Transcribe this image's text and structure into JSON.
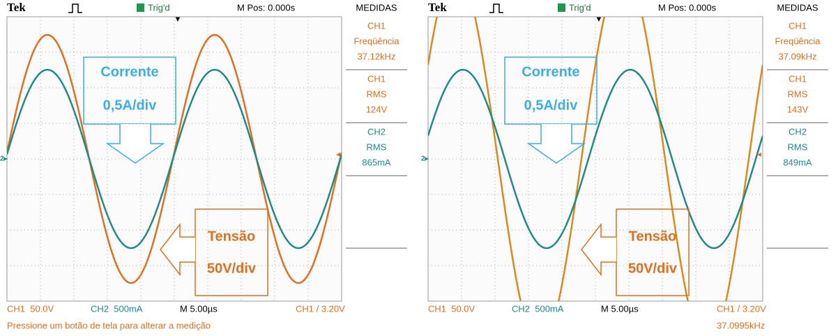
{
  "screens": [
    {
      "header": {
        "brand": "Tek",
        "trigger": "Trig'd",
        "position": "M Pos: 0.000s",
        "menu_title": "MEDIDAS"
      },
      "measurements": [
        [
          "CH1",
          "Freqüência",
          "37.12kHz"
        ],
        [
          "CH1",
          "RMS",
          "124V"
        ],
        [
          "CH2",
          "RMS",
          "865mA"
        ]
      ],
      "footer": {
        "ch1": "CH1  50.0V",
        "ch2": "CH2  500mA",
        "time": "M 5.00µs",
        "trigger": "CH1 / 3.20V",
        "message": "Pressione um botão de tela para alterar a medição"
      },
      "annotations": {
        "current": [
          "Corrente",
          "0,5A/div"
        ],
        "voltage": [
          "Tensão",
          "50V/div"
        ]
      }
    },
    {
      "header": {
        "brand": "Tek",
        "trigger": "Trig'd",
        "position": "M Pos: 0.000s",
        "menu_title": "MEDIDAS"
      },
      "measurements": [
        [
          "CH1",
          "Freqüência",
          "37.09kHz"
        ],
        [
          "CH1",
          "RMS",
          "143V"
        ],
        [
          "CH2",
          "RMS",
          "849mA"
        ]
      ],
      "footer": {
        "ch1": "CH1  50.0V",
        "ch2": "CH2  500mA",
        "time": "M 5.00µs",
        "trigger": "CH1 / 3.20V",
        "message": "37.0995kHz"
      },
      "annotations": {
        "current": [
          "Corrente",
          "0,5A/div"
        ],
        "voltage": [
          "Tensão",
          "50V/div"
        ]
      }
    }
  ]
}
